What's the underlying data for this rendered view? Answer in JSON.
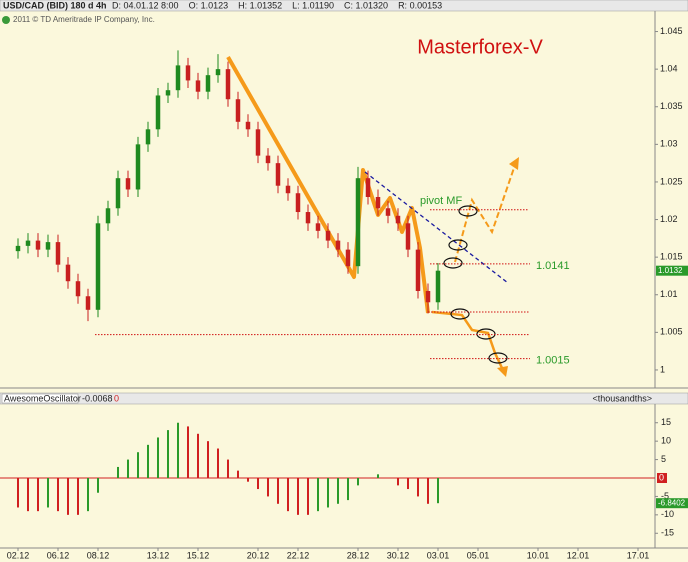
{
  "chart_data": [
    {
      "type": "candlestick",
      "title": "USD/CAD (BID) 180 d 4h",
      "info": [
        "D: 04.01.12 8:00",
        "O: 1.0123",
        "H: 1.01352",
        "L: 1.01190",
        "C: 1.01320",
        "R: 0.00153"
      ],
      "copyright": "2011 © TD Ameritrade IP Company, Inc.",
      "brand": "Masterforex-V",
      "pivot_label": "pivot MF",
      "x": [
        0,
        0.5,
        1,
        1.5,
        2,
        2.5,
        3,
        3.5,
        4,
        4.5,
        5,
        5.5,
        6,
        6.5,
        7,
        7.5,
        8,
        8.5,
        9,
        9.5,
        10,
        10.5,
        11,
        11.5,
        12,
        12.5,
        13,
        13.5,
        14,
        14.5,
        15,
        15.5,
        16,
        16.5,
        17,
        17.5,
        18,
        18.5,
        19,
        19.5,
        20,
        20.5,
        21
      ],
      "open": [
        1.0158,
        1.0165,
        1.0172,
        1.016,
        1.017,
        1.014,
        1.0118,
        1.0098,
        1.008,
        1.0195,
        1.0215,
        1.0255,
        1.024,
        1.03,
        1.032,
        1.0365,
        1.0372,
        1.0405,
        1.0385,
        1.037,
        1.0392,
        1.04,
        1.036,
        1.033,
        1.032,
        1.0285,
        1.0275,
        1.0245,
        1.0235,
        1.021,
        1.0195,
        1.0185,
        1.0172,
        1.016,
        1.0138,
        1.0255,
        1.023,
        1.0215,
        1.0205,
        1.0195,
        1.016,
        1.0105,
        1.009
      ],
      "high": [
        1.0175,
        1.0182,
        1.0182,
        1.018,
        1.018,
        1.015,
        1.0128,
        1.0108,
        1.0205,
        1.0225,
        1.0265,
        1.0265,
        1.031,
        1.033,
        1.0375,
        1.0382,
        1.0425,
        1.0415,
        1.0395,
        1.0402,
        1.042,
        1.041,
        1.037,
        1.034,
        1.033,
        1.0295,
        1.0285,
        1.0255,
        1.0245,
        1.022,
        1.0205,
        1.0195,
        1.0182,
        1.017,
        1.027,
        1.0265,
        1.024,
        1.0225,
        1.0215,
        1.0205,
        1.017,
        1.0115,
        1.0142
      ],
      "low": [
        1.0148,
        1.0155,
        1.015,
        1.015,
        1.013,
        1.0108,
        1.0088,
        1.0065,
        1.007,
        1.0185,
        1.0205,
        1.023,
        1.023,
        1.029,
        1.031,
        1.0355,
        1.0362,
        1.0375,
        1.036,
        1.036,
        1.0382,
        1.035,
        1.032,
        1.031,
        1.0275,
        1.0265,
        1.0235,
        1.0225,
        1.02,
        1.0185,
        1.0175,
        1.0162,
        1.015,
        1.0128,
        1.0128,
        1.022,
        1.0205,
        1.0195,
        1.0185,
        1.015,
        1.0095,
        1.0075,
        1.008
      ],
      "close": [
        1.0165,
        1.0172,
        1.016,
        1.017,
        1.014,
        1.0118,
        1.0098,
        1.008,
        1.0195,
        1.0215,
        1.0255,
        1.024,
        1.03,
        1.032,
        1.0365,
        1.0372,
        1.0405,
        1.0385,
        1.037,
        1.0392,
        1.04,
        1.036,
        1.033,
        1.032,
        1.0285,
        1.0275,
        1.0245,
        1.0235,
        1.021,
        1.0195,
        1.0185,
        1.0172,
        1.016,
        1.0138,
        1.0255,
        1.023,
        1.0215,
        1.0205,
        1.0195,
        1.016,
        1.0105,
        1.009,
        1.0132
      ],
      "up_color": "#1f8a1f",
      "down_color": "#c82020",
      "xlim": [
        -0.9,
        31.85
      ],
      "xticks": [
        {
          "value": 0,
          "label": "02.12"
        },
        {
          "value": 2,
          "label": "06.12"
        },
        {
          "value": 4,
          "label": "08.12"
        },
        {
          "value": 7,
          "label": "13.12"
        },
        {
          "value": 9,
          "label": "15.12"
        },
        {
          "value": 12,
          "label": "20.12"
        },
        {
          "value": 14,
          "label": "22.12"
        },
        {
          "value": 17,
          "label": "28.12"
        },
        {
          "value": 19,
          "label": "30.12"
        },
        {
          "value": 21,
          "label": "03.01"
        },
        {
          "value": 23,
          "label": "05.01"
        },
        {
          "value": 26,
          "label": "10.01"
        },
        {
          "value": 28,
          "label": "12.01"
        },
        {
          "value": 31,
          "label": "17.01"
        }
      ],
      "ylim": [
        0.9976,
        1.0476
      ],
      "yticks": [
        1,
        1.005,
        1.01,
        1.015,
        1.02,
        1.025,
        1.03,
        1.035,
        1.04,
        1.045
      ],
      "levels": [
        1.0213,
        1.0077,
        1.0047
      ],
      "labeled_levels": [
        1.0141,
        1.0015
      ]
    },
    {
      "type": "bar",
      "title": "AwesomeOscillator",
      "header_value": "-0.0068",
      "header_flag": "0",
      "units": "<thousandths>",
      "values": [
        -8,
        -9,
        -9,
        -8,
        -9,
        -10,
        -10,
        -9,
        -4,
        0,
        3,
        5,
        7,
        9,
        11,
        13,
        15,
        14,
        12,
        10,
        8,
        5,
        2,
        -1,
        -3,
        -5,
        -7,
        -9,
        -10,
        -10,
        -9,
        -8,
        -7,
        -6,
        -2,
        0,
        1,
        0,
        -2,
        -3,
        -5,
        -7,
        -6.8402
      ],
      "up_color": "#2a9a2a",
      "down_color": "#d02020",
      "ylim": [
        -19,
        19
      ],
      "yticks": [
        -15,
        -10,
        -5,
        5,
        10,
        15
      ],
      "ref_line": 0
    }
  ]
}
